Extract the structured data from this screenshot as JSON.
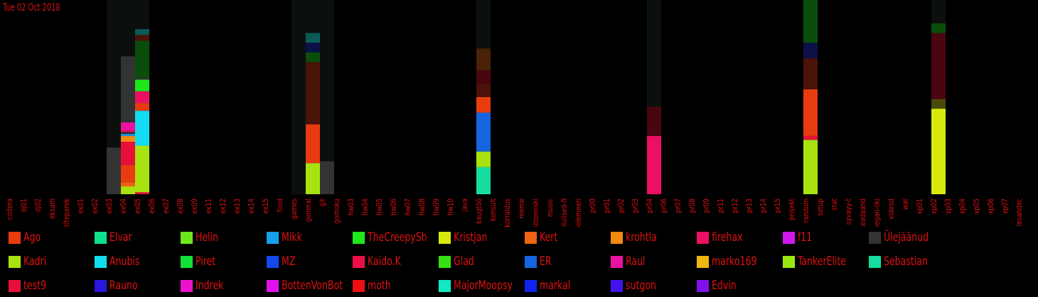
{
  "date_label": "Tue 02 Oct 2018",
  "colors": {
    "label_text": "#e01010",
    "background": "#000000",
    "column_bg": "#0b100d"
  },
  "chart_data": {
    "type": "bar",
    "stacked": true,
    "title": "",
    "xlabel": "",
    "ylabel": "",
    "ylim": [
      0,
      100
    ],
    "categories": [
      "codera",
      "dj01",
      "dj02",
      "eksam",
      "elteparek",
      "ex01",
      "ex02",
      "ex03",
      "ex04",
      "ex05",
      "ex06",
      "ex07",
      "ex08",
      "ex09",
      "ex11",
      "ex12",
      "ex13",
      "ex14",
      "ex15",
      "food",
      "games",
      "general",
      "git",
      "gomoku",
      "hw03",
      "hw04",
      "hw05",
      "hw06",
      "hw07",
      "hw08",
      "hw09",
      "hw10",
      "java",
      "kaugtöö",
      "konsult",
      "korraldus",
      "meme",
      "mittemiski",
      "music",
      "olulised-fi",
      "polemeeri",
      "pr00",
      "pr01",
      "pr02",
      "pr03",
      "pr04",
      "pr06",
      "pr07",
      "pr08",
      "pr09",
      "pr11",
      "pr12",
      "pr13",
      "pr14",
      "pr15",
      "projekt",
      "random",
      "setup",
      "stat",
      "syvayy-t",
      "teadaand",
      "vegan-liki",
      "videod",
      "wat",
      "xp01",
      "xp02",
      "xp03",
      "xp04",
      "xp05",
      "xp06",
      "xp07",
      "ülesandec"
    ],
    "background_bars": {
      "ex03": 100,
      "ex04": 100,
      "ex05": 100,
      "games": 100,
      "general": 100,
      "git": 100,
      "kaugtöö": 100,
      "pr04": 100,
      "random": 100,
      "xp02": 100
    },
    "stacks": {
      "ex03": [
        {
          "user": "Ülejäänud",
          "value": 24
        }
      ],
      "ex04": [
        {
          "user": "Kadri",
          "value": 4
        },
        {
          "user": "Kert",
          "value": 2
        },
        {
          "user": "Ago",
          "value": 9
        },
        {
          "user": "test9",
          "value": 12
        },
        {
          "user": "krohtla",
          "value": 3
        },
        {
          "user": "Mikk",
          "value": 1
        },
        {
          "user": "Ülejäänud",
          "value": 1
        },
        {
          "user": "firehax",
          "value": 1
        },
        {
          "user": "Raul",
          "value": 4
        },
        {
          "user": "Ülejäänud",
          "value": 34
        }
      ],
      "ex05": [
        {
          "user": "test9",
          "value": 1
        },
        {
          "user": "Kadri",
          "value": 24
        },
        {
          "user": "Anubis",
          "value": 18
        },
        {
          "user": "Ago",
          "value": 4
        },
        {
          "user": "firehax",
          "value": 6
        },
        {
          "user": "TheCreepySh",
          "value": 6
        },
        {
          "user": "Ülejäänud",
          "value": 1
        },
        {
          "user": "other-darkgreen",
          "value": 19
        },
        {
          "user": "other-darkred",
          "value": 3
        },
        {
          "user": "other-teal",
          "value": 3
        }
      ],
      "games": [],
      "general": [
        {
          "user": "Kadri",
          "value": 16
        },
        {
          "user": "Ago",
          "value": 20
        },
        {
          "user": "other-darkred",
          "value": 32
        },
        {
          "user": "other-darkgreen",
          "value": 5
        },
        {
          "user": "other-navy",
          "value": 5
        },
        {
          "user": "other-teal",
          "value": 5
        }
      ],
      "git": [
        {
          "user": "Ülejäänud",
          "value": 17
        }
      ],
      "kaugtöö": [
        {
          "user": "Sebastian",
          "value": 14
        },
        {
          "user": "Kadri",
          "value": 8
        },
        {
          "user": "ER",
          "value": 20
        },
        {
          "user": "Ago",
          "value": 8
        },
        {
          "user": "other-darkred",
          "value": 7
        },
        {
          "user": "other-maroon",
          "value": 7
        },
        {
          "user": "other-brown",
          "value": 11
        }
      ],
      "pr04": [
        {
          "user": "firehax",
          "value": 30
        },
        {
          "user": "other-maroon",
          "value": 15
        }
      ],
      "random": [
        {
          "user": "Kadri",
          "value": 28
        },
        {
          "user": "test9",
          "value": 2
        },
        {
          "user": "Ago",
          "value": 24
        },
        {
          "user": "other-darkred",
          "value": 16
        },
        {
          "user": "other-navy",
          "value": 8
        },
        {
          "user": "other-darkgreen",
          "value": 22
        }
      ],
      "xp02": [
        {
          "user": "Kristjan",
          "value": 44
        },
        {
          "user": "other-olive",
          "value": 5
        },
        {
          "user": "other-maroon",
          "value": 34
        },
        {
          "user": "other-darkgreen",
          "value": 5
        }
      ]
    },
    "extra_colors": {
      "other-darkgreen": "#0b4d0b",
      "other-darkred": "#4a1208",
      "other-teal": "#0b5a55",
      "other-navy": "#0b1046",
      "other-maroon": "#4a0610",
      "other-brown": "#4a2208",
      "other-olive": "#4a4a08"
    },
    "legend": [
      {
        "name": "Ago",
        "color": "#e83c10"
      },
      {
        "name": "Elvar",
        "color": "#10e08c"
      },
      {
        "name": "Helin",
        "color": "#6ce81a"
      },
      {
        "name": "Mikk",
        "color": "#16a0ec"
      },
      {
        "name": "TheCreepySh",
        "color": "#1ee81a"
      },
      {
        "name": "Kristjan",
        "color": "#d8ea0c"
      },
      {
        "name": "Kert",
        "color": "#ee6414"
      },
      {
        "name": "krohtla",
        "color": "#f08a10"
      },
      {
        "name": "firehax",
        "color": "#ec1062"
      },
      {
        "name": "f11",
        "color": "#d018ec"
      },
      {
        "name": "Ülejäänud",
        "color": "#333333"
      },
      {
        "name": "Kadri",
        "color": "#a8e210"
      },
      {
        "name": "Anubis",
        "color": "#12dcf0"
      },
      {
        "name": "Piret",
        "color": "#10e23a"
      },
      {
        "name": "MZ",
        "color": "#1248ec"
      },
      {
        "name": "Kaido.K",
        "color": "#ec1046"
      },
      {
        "name": "Glad",
        "color": "#36e012"
      },
      {
        "name": "ER",
        "color": "#1664e0"
      },
      {
        "name": "Raul",
        "color": "#ec12a0"
      },
      {
        "name": "marko169",
        "color": "#eeb612"
      },
      {
        "name": "TankerElite",
        "color": "#9ae810"
      },
      {
        "name": "Sebastian",
        "color": "#16dca0"
      },
      {
        "name": "test9",
        "color": "#e8103a"
      },
      {
        "name": "Rauno",
        "color": "#2a16dc"
      },
      {
        "name": "Indrek",
        "color": "#ec12cc"
      },
      {
        "name": "BottenVonBot",
        "color": "#e012ec"
      },
      {
        "name": "moth",
        "color": "#ec1010"
      },
      {
        "name": "MajorMoopsy",
        "color": "#12e8c6"
      },
      {
        "name": "markal",
        "color": "#1224ec"
      },
      {
        "name": "sutgon",
        "color": "#4412ec"
      },
      {
        "name": "Edvin",
        "color": "#8012ec"
      }
    ]
  }
}
